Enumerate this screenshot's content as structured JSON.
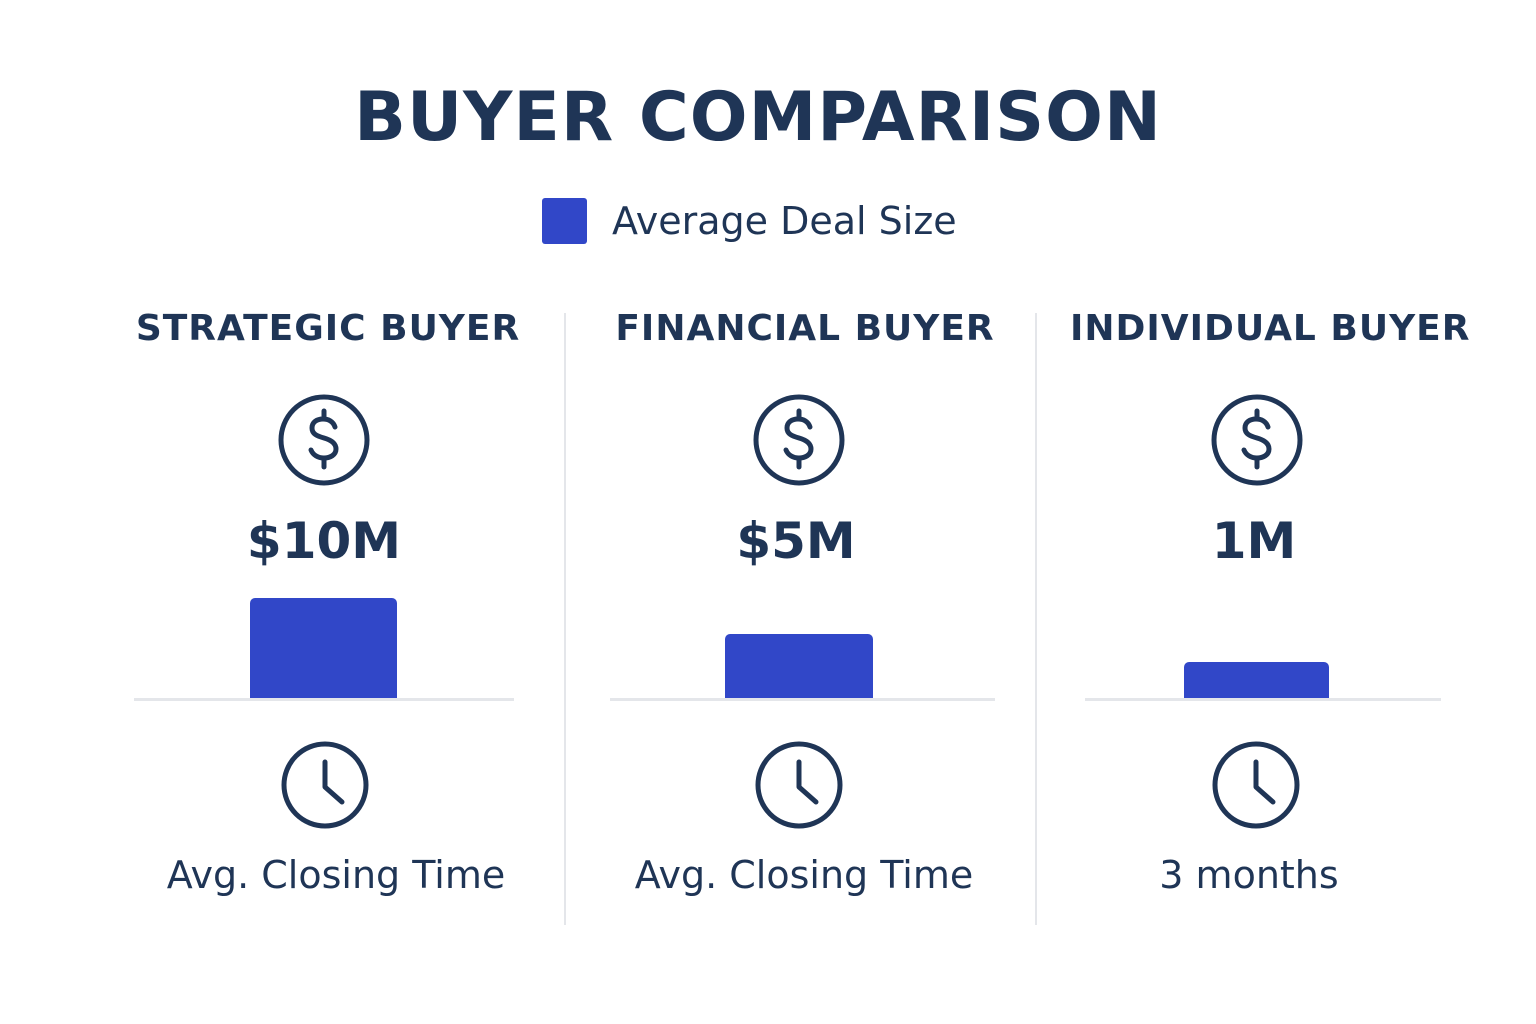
{
  "title": "BUYER COMPARISON",
  "legend": {
    "label": "Average Deal Size",
    "color": "#3147c8"
  },
  "icons": {
    "deal": "dollar-circle-icon",
    "time": "clock-icon"
  },
  "colors": {
    "text": "#1f3556",
    "bar": "#3147c8",
    "divider": "#e4e6ea"
  },
  "panels": [
    {
      "title": "STRATEGIC BUYER",
      "deal_label": "$10M",
      "closing_label": "Avg. Closing Time"
    },
    {
      "title": "FINANCIAL BUYER",
      "deal_label": "$5M",
      "closing_label": "Avg. Closing Time"
    },
    {
      "title": "INDIVIDUAL BUYER",
      "deal_label": "1M",
      "closing_label": "3 months"
    }
  ],
  "chart_data": {
    "type": "bar",
    "title": "BUYER COMPARISON",
    "categories": [
      "STRATEGIC BUYER",
      "FINANCIAL BUYER",
      "INDIVIDUAL BUYER"
    ],
    "series": [
      {
        "name": "Average Deal Size",
        "values": [
          10,
          5,
          1
        ]
      }
    ],
    "value_labels": [
      "$10M",
      "$5M",
      "1M"
    ],
    "closing_time_labels": [
      "Avg. Closing Time",
      "Avg. Closing Time",
      "3 months"
    ],
    "legend": "top-center",
    "grid": false
  }
}
